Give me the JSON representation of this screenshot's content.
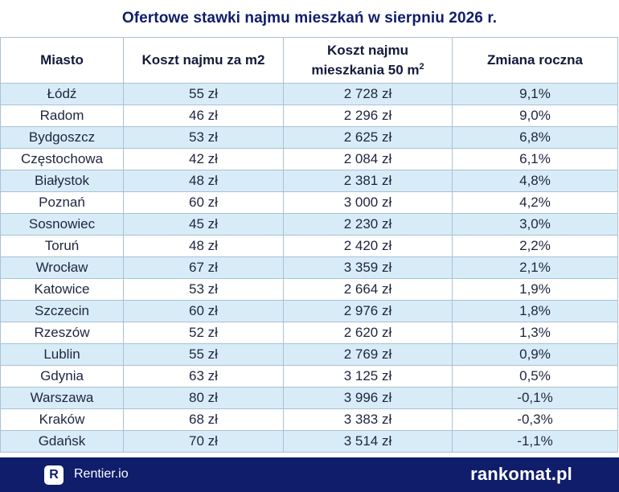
{
  "title": "Ofertowe stawki najmu mieszkań w sierpniu 2026 r.",
  "chart_data": {
    "type": "table",
    "headers": {
      "city": "Miasto",
      "per_m2": "Koszt najmu za m2",
      "flat_line1": "Koszt najmu",
      "flat_line2": "mieszkania 50 m",
      "flat_sup": "2",
      "change": "Zmiana roczna"
    },
    "rows": [
      {
        "city": "Łódź",
        "per_m2": "55 zł",
        "flat": "2 728 zł",
        "change": "9,1%"
      },
      {
        "city": "Radom",
        "per_m2": "46 zł",
        "flat": "2 296 zł",
        "change": "9,0%"
      },
      {
        "city": "Bydgoszcz",
        "per_m2": "53 zł",
        "flat": "2 625 zł",
        "change": "6,8%"
      },
      {
        "city": "Częstochowa",
        "per_m2": "42 zł",
        "flat": "2 084 zł",
        "change": "6,1%"
      },
      {
        "city": "Białystok",
        "per_m2": "48 zł",
        "flat": "2 381 zł",
        "change": "4,8%"
      },
      {
        "city": "Poznań",
        "per_m2": "60 zł",
        "flat": "3 000 zł",
        "change": "4,2%"
      },
      {
        "city": "Sosnowiec",
        "per_m2": "45 zł",
        "flat": "2 230 zł",
        "change": "3,0%"
      },
      {
        "city": "Toruń",
        "per_m2": "48 zł",
        "flat": "2 420 zł",
        "change": "2,2%"
      },
      {
        "city": "Wrocław",
        "per_m2": "67 zł",
        "flat": "3 359 zł",
        "change": "2,1%"
      },
      {
        "city": "Katowice",
        "per_m2": "53 zł",
        "flat": "2 664 zł",
        "change": "1,9%"
      },
      {
        "city": "Szczecin",
        "per_m2": "60 zł",
        "flat": "2 976 zł",
        "change": "1,8%"
      },
      {
        "city": "Rzeszów",
        "per_m2": "52 zł",
        "flat": "2 620 zł",
        "change": "1,3%"
      },
      {
        "city": "Lublin",
        "per_m2": "55 zł",
        "flat": "2 769 zł",
        "change": "0,9%"
      },
      {
        "city": "Gdynia",
        "per_m2": "63 zł",
        "flat": "3 125 zł",
        "change": "0,5%"
      },
      {
        "city": "Warszawa",
        "per_m2": "80 zł",
        "flat": "3 996 zł",
        "change": "-0,1%"
      },
      {
        "city": "Kraków",
        "per_m2": "68 zł",
        "flat": "3 383 zł",
        "change": "-0,3%"
      },
      {
        "city": "Gdańsk",
        "per_m2": "70 zł",
        "flat": "3 514 zł",
        "change": "-1,1%"
      }
    ]
  },
  "footer": {
    "logo_letter": "R",
    "left_brand": "Rentier.io",
    "right_brand": "rankomat.pl"
  },
  "colors": {
    "title": "#0f1d6b",
    "stripe": "#d8ecf7",
    "border": "#a9c1d6",
    "footer_bg": "#0f1d6b"
  }
}
